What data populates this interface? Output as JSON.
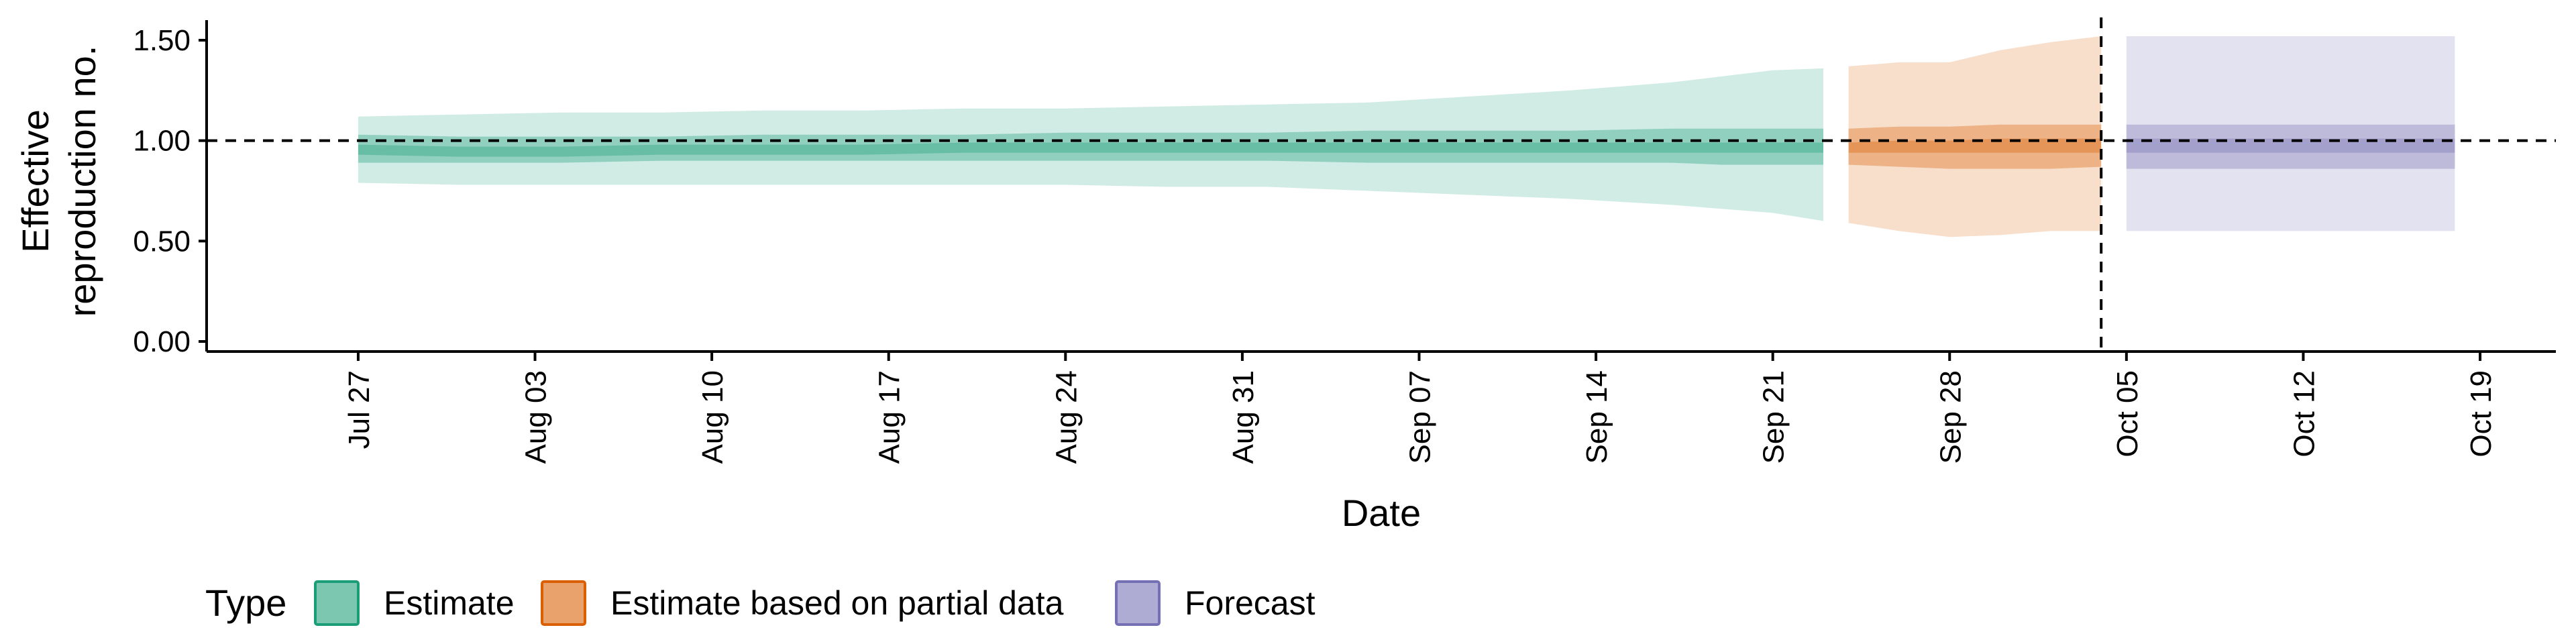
{
  "chart_data": {
    "type": "area",
    "xlabel": "Date",
    "ylabel_lines": [
      "Effective",
      "reproduction no."
    ],
    "ylim": [
      -0.05,
      1.6
    ],
    "yticks": [
      0.0,
      0.5,
      1.0,
      1.5
    ],
    "ytick_labels": [
      "0.00",
      "0.50",
      "1.00",
      "1.50"
    ],
    "xlim": [
      "2020-07-21",
      "2020-10-22"
    ],
    "xticks": [
      "2020-07-27",
      "2020-08-03",
      "2020-08-10",
      "2020-08-17",
      "2020-08-24",
      "2020-08-31",
      "2020-09-07",
      "2020-09-14",
      "2020-09-21",
      "2020-09-28",
      "2020-10-05",
      "2020-10-12",
      "2020-10-19"
    ],
    "xtick_labels": [
      "Jul 27",
      "Aug 03",
      "Aug 10",
      "Aug 17",
      "Aug 24",
      "Aug 31",
      "Sep 07",
      "Sep 14",
      "Sep 21",
      "Sep 28",
      "Oct 05",
      "Oct 12",
      "Oct 19"
    ],
    "reference_line_y": 1.0,
    "forecast_start_line_x": "2020-10-04",
    "grid": false,
    "legend_position": "bottom-left",
    "legend_title": "Type",
    "colors": {
      "Estimate": "#1b9e77",
      "Estimate based on partial data": "#d95f02",
      "Forecast": "#7570b3"
    },
    "series": [
      {
        "name": "Estimate",
        "x": [
          "2020-07-27",
          "2020-07-31",
          "2020-08-04",
          "2020-08-08",
          "2020-08-12",
          "2020-08-16",
          "2020-08-20",
          "2020-08-24",
          "2020-08-28",
          "2020-09-01",
          "2020-09-05",
          "2020-09-09",
          "2020-09-13",
          "2020-09-17",
          "2020-09-19",
          "2020-09-21",
          "2020-09-23"
        ],
        "upper_90": [
          1.12,
          1.13,
          1.14,
          1.14,
          1.15,
          1.15,
          1.16,
          1.16,
          1.17,
          1.18,
          1.19,
          1.22,
          1.25,
          1.29,
          1.32,
          1.35,
          1.36
        ],
        "upper_50": [
          1.03,
          1.02,
          1.02,
          1.02,
          1.03,
          1.03,
          1.03,
          1.04,
          1.04,
          1.04,
          1.05,
          1.05,
          1.05,
          1.06,
          1.06,
          1.06,
          1.06
        ],
        "lower_50": [
          0.89,
          0.89,
          0.89,
          0.9,
          0.9,
          0.9,
          0.9,
          0.9,
          0.9,
          0.9,
          0.89,
          0.89,
          0.89,
          0.89,
          0.88,
          0.88,
          0.88
        ],
        "lower_90": [
          0.79,
          0.78,
          0.78,
          0.78,
          0.78,
          0.78,
          0.78,
          0.78,
          0.77,
          0.77,
          0.75,
          0.73,
          0.71,
          0.68,
          0.66,
          0.64,
          0.6
        ],
        "upper_20": [
          0.98,
          0.97,
          0.97,
          0.98,
          0.98,
          0.98,
          0.99,
          0.99,
          0.99,
          0.99,
          0.99,
          0.99,
          0.99,
          0.99,
          0.99,
          0.99,
          0.99
        ],
        "lower_20": [
          0.93,
          0.92,
          0.92,
          0.93,
          0.93,
          0.93,
          0.94,
          0.94,
          0.94,
          0.94,
          0.94,
          0.94,
          0.94,
          0.94,
          0.94,
          0.94,
          0.94
        ]
      },
      {
        "name": "Estimate based on partial data",
        "x": [
          "2020-09-24",
          "2020-09-26",
          "2020-09-28",
          "2020-09-30",
          "2020-10-02",
          "2020-10-04"
        ],
        "upper_90": [
          1.37,
          1.39,
          1.39,
          1.45,
          1.49,
          1.52
        ],
        "upper_50": [
          1.06,
          1.07,
          1.07,
          1.08,
          1.08,
          1.08
        ],
        "lower_50": [
          0.88,
          0.87,
          0.86,
          0.86,
          0.86,
          0.87
        ],
        "lower_90": [
          0.59,
          0.55,
          0.52,
          0.53,
          0.55,
          0.55
        ],
        "upper_20": [
          0.99,
          1.0,
          1.0,
          1.01,
          1.01,
          1.01
        ],
        "lower_20": [
          0.94,
          0.94,
          0.94,
          0.94,
          0.94,
          0.94
        ]
      },
      {
        "name": "Forecast",
        "x": [
          "2020-10-05",
          "2020-10-18"
        ],
        "upper_90": [
          1.52,
          1.52
        ],
        "upper_50": [
          1.08,
          1.08
        ],
        "lower_50": [
          0.86,
          0.86
        ],
        "lower_90": [
          0.55,
          0.55
        ],
        "upper_20": [
          1.01,
          1.01
        ],
        "lower_20": [
          0.94,
          0.94
        ]
      }
    ]
  }
}
